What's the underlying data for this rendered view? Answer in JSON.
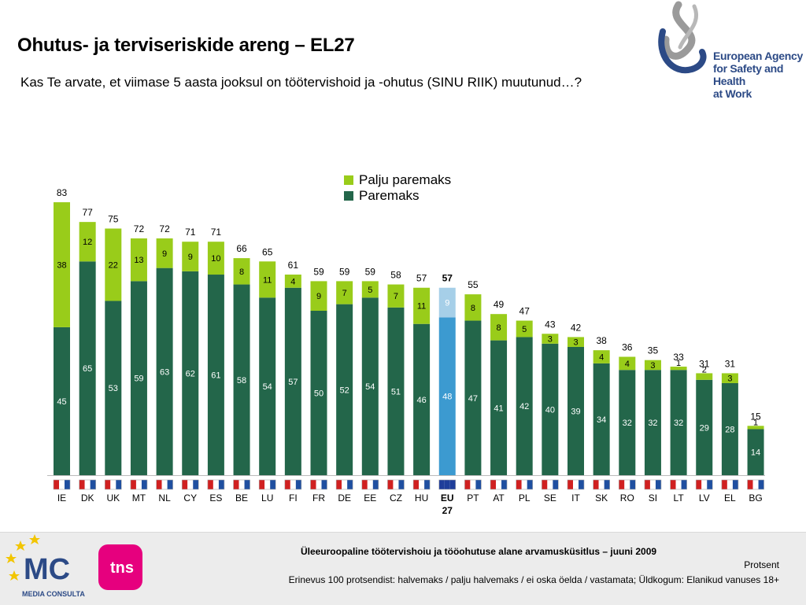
{
  "page": {
    "title": "Ohutus- ja terviseriskide areng – EL27",
    "subtitle": "Kas Te arvate, et viimase 5 aasta jooksul on töötervishoid ja -ohutus (SINU RIIK) muutunud…?"
  },
  "branding": {
    "agency_line1": "European Agency",
    "agency_line2": "for Safety and Health",
    "agency_line3": "at Work",
    "mc_name": "MEDIA CONSULTA",
    "mc_initials": "MC",
    "tns_name": "tns"
  },
  "footer": {
    "survey": "Üleeuroopaline töötervishoiu ja tööohutuse alane arvamusküsitlus – juuni 2009",
    "unit": "Protsent",
    "note": "Erinevus 100 protsendist: halvemaks / palju halvemaks / ei oska öelda / vastamata; Üldkogum: Elanikud vanuses 18+"
  },
  "colors": {
    "paremaks": "#23664a",
    "palju_paremaks": "#99cc1a",
    "eu_paremaks": "#3c9ad0",
    "eu_palju_paremaks": "#a6cfe8",
    "agency_blue": "#2c4a86"
  },
  "chart_data": {
    "type": "bar",
    "stacked": true,
    "categories": [
      "IE",
      "DK",
      "UK",
      "MT",
      "NL",
      "CY",
      "ES",
      "BE",
      "LU",
      "FI",
      "FR",
      "DE",
      "EE",
      "CZ",
      "HU",
      "EU 27",
      "PT",
      "AT",
      "PL",
      "SE",
      "IT",
      "SK",
      "RO",
      "SI",
      "LT",
      "LV",
      "EL",
      "BG"
    ],
    "series": [
      {
        "name": "Paremaks",
        "values": [
          45,
          65,
          53,
          59,
          63,
          62,
          61,
          58,
          54,
          57,
          50,
          52,
          54,
          51,
          46,
          48,
          47,
          41,
          42,
          40,
          39,
          34,
          32,
          32,
          32,
          29,
          28,
          14
        ]
      },
      {
        "name": "Palju paremaks",
        "values": [
          38,
          12,
          22,
          13,
          9,
          9,
          10,
          8,
          11,
          4,
          9,
          7,
          5,
          7,
          11,
          9,
          8,
          8,
          5,
          3,
          3,
          4,
          4,
          3,
          1,
          2,
          3,
          1
        ]
      }
    ],
    "totals": [
      83,
      77,
      75,
      72,
      72,
      71,
      71,
      66,
      65,
      61,
      59,
      59,
      59,
      58,
      57,
      57,
      55,
      49,
      47,
      43,
      42,
      38,
      36,
      35,
      33,
      31,
      31,
      15
    ],
    "highlight_category": "EU 27",
    "ylim": [
      0,
      90
    ],
    "legend_position": "top-right",
    "grid": false
  }
}
